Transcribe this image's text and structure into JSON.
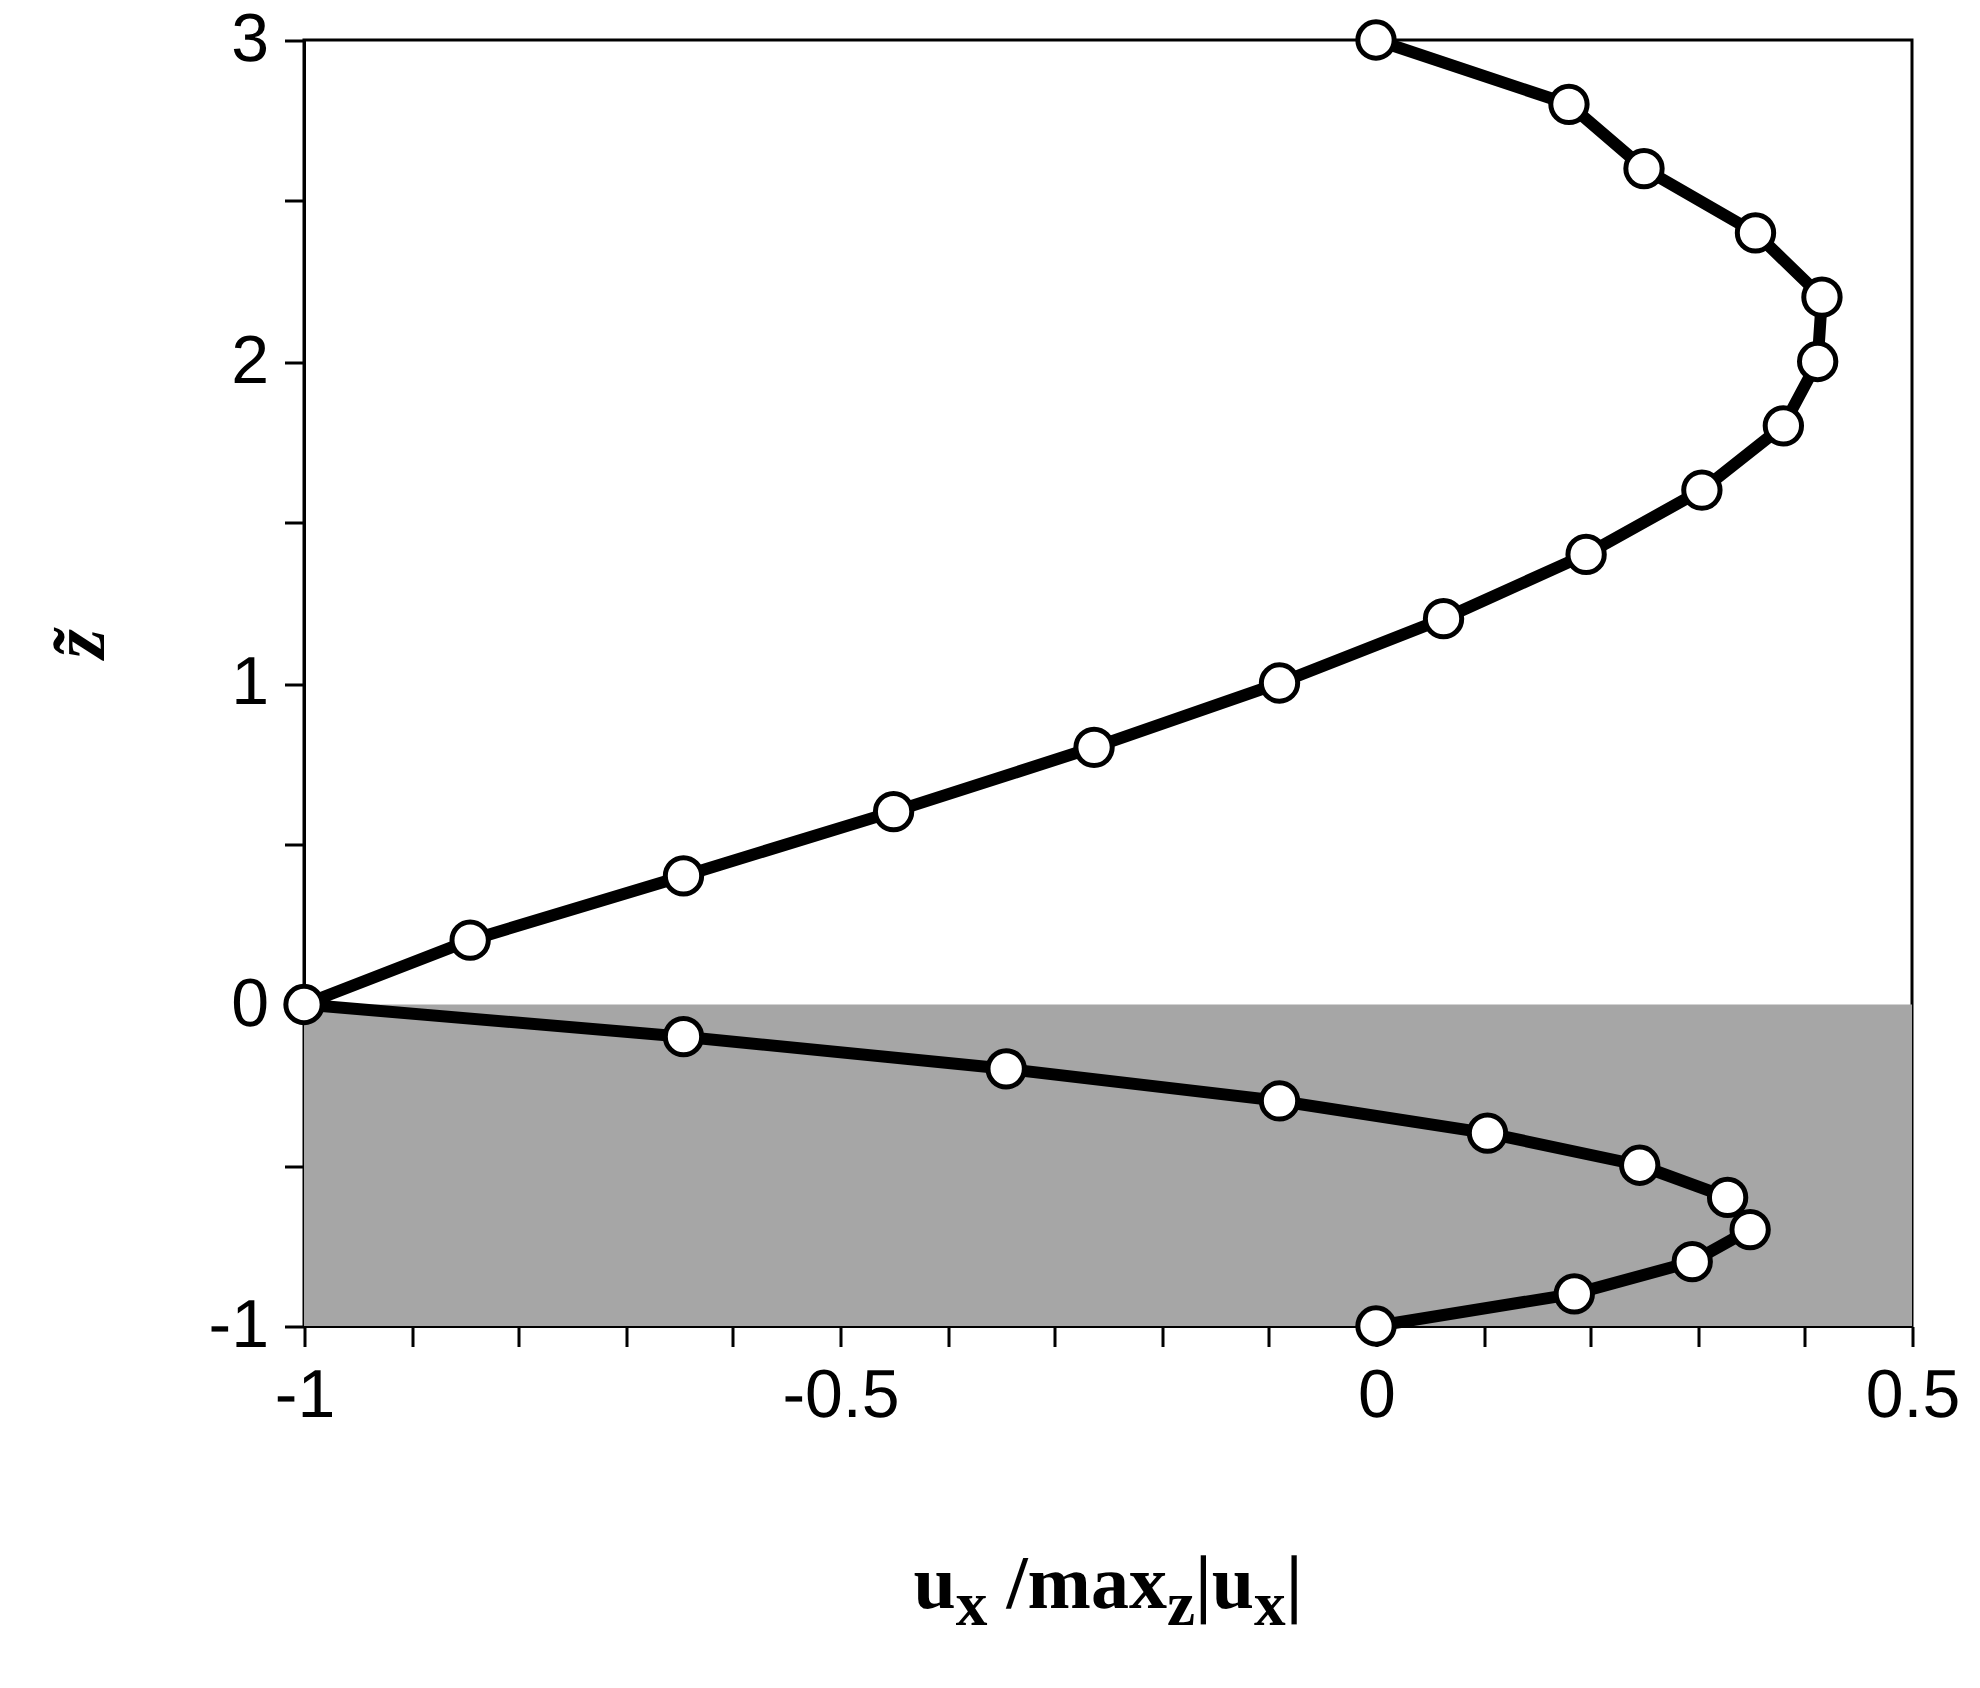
{
  "chart_data": {
    "type": "line",
    "xlabel": "u$_{x}$ /max$_{z}$|u$_{x}$|",
    "ylabel": "z̃",
    "xlim": [
      -1,
      0.5
    ],
    "ylim": [
      -1,
      3
    ],
    "xticks": [
      -1,
      {
        "value": -0.9,
        "label": null
      },
      {
        "value": -0.8,
        "label": null
      },
      {
        "value": -0.7,
        "label": null
      },
      {
        "value": -0.6,
        "label": null
      },
      -0.5,
      {
        "value": -0.4,
        "label": null
      },
      {
        "value": -0.3,
        "label": null
      },
      {
        "value": -0.2,
        "label": null
      },
      {
        "value": -0.1,
        "label": null
      },
      0,
      {
        "value": 0.1,
        "label": null
      },
      {
        "value": 0.2,
        "label": null
      },
      {
        "value": 0.3,
        "label": null
      },
      {
        "value": 0.4,
        "label": null
      },
      0.5
    ],
    "yticks": [
      -1,
      {
        "value": -0.5,
        "label": null
      },
      0,
      {
        "value": 0.5,
        "label": null
      },
      1,
      {
        "value": 1.5,
        "label": null
      },
      2,
      {
        "value": 2.5,
        "label": null
      },
      3
    ],
    "grid": false,
    "marker": "circle",
    "line_style": "solid",
    "bands": [
      {
        "axis": "y",
        "from": -1,
        "to": 0,
        "color": "#a6a6a6"
      }
    ],
    "series": [
      {
        "color": "#000000",
        "x": [
          0,
          0.18,
          0.25,
          0.354,
          0.416,
          0.412,
          0.38,
          0.304,
          0.196,
          0.063,
          -0.09,
          -0.263,
          -0.45,
          -0.646,
          -0.845,
          -1,
          -0.646,
          -0.345,
          -0.09,
          0.104,
          0.246,
          0.328,
          0.349,
          0.295,
          0.185,
          0
        ],
        "values": [
          3,
          2.8,
          2.6,
          2.4,
          2.2,
          2,
          1.8,
          1.6,
          1.4,
          1.2,
          1,
          0.8,
          0.6,
          0.4,
          0.2,
          0,
          -0.1,
          -0.2,
          -0.3,
          -0.4,
          -0.5,
          -0.6,
          -0.7,
          -0.8,
          -0.9,
          -1
        ]
      }
    ]
  }
}
